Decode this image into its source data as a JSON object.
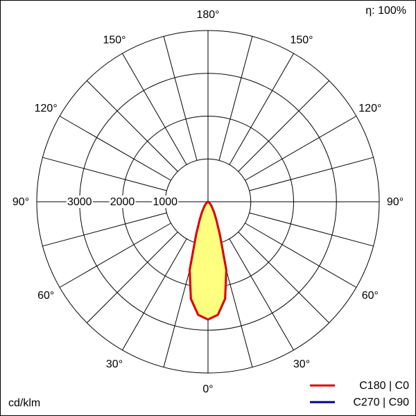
{
  "chart_data": {
    "type": "polar",
    "annotation": "η: 100%",
    "unit_label": "cd/klm",
    "theta": [
      0,
      5,
      10,
      15,
      20,
      25,
      30,
      40,
      50,
      60,
      90
    ],
    "series": [
      {
        "name": "C270 | C90",
        "color": "#00008b",
        "values": [
          2750,
          2650,
          2300,
          1650,
          800,
          450,
          280,
          120,
          50,
          20,
          0
        ]
      },
      {
        "name": "C180 | C0",
        "color": "#e00000",
        "fill": "#ffff80",
        "values": [
          2750,
          2650,
          2300,
          1650,
          800,
          450,
          280,
          120,
          50,
          20,
          0
        ]
      }
    ],
    "rlim": [
      0,
      4000
    ],
    "rticks": [
      1000,
      2000,
      3000
    ],
    "theta_ticks": [
      {
        "value": 0,
        "label": "0°"
      },
      {
        "value": 30,
        "label": "30°"
      },
      {
        "value": 60,
        "label": "60°"
      },
      {
        "value": 90,
        "label": "90°"
      },
      {
        "value": 120,
        "label": "120°"
      },
      {
        "value": 150,
        "label": "150°"
      },
      {
        "value": 180,
        "label": "180°"
      }
    ]
  }
}
